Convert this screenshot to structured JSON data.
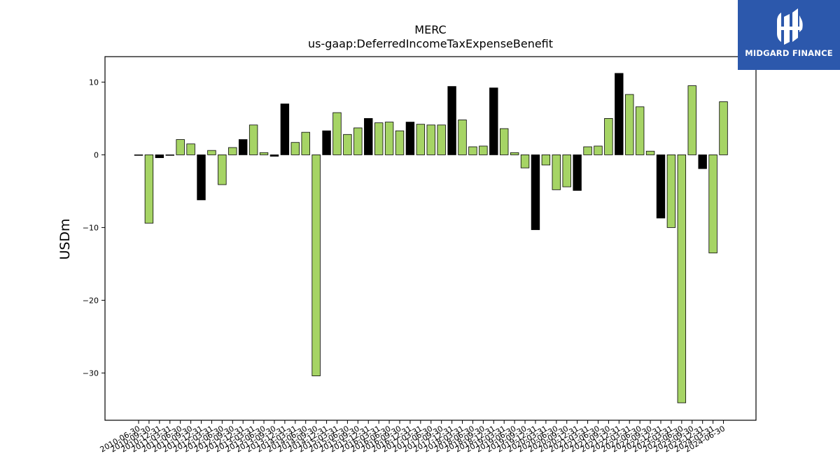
{
  "brand": {
    "name": "MIDGARD FINANCE",
    "logo_icon": "midgard-logo-icon",
    "background": "#2c58ac"
  },
  "chart_data": {
    "type": "bar",
    "title": "MERC",
    "subtitle": "us-gaap:DeferredIncomeTaxExpenseBenefit",
    "xlabel": "",
    "ylabel": "USDm",
    "ylim": [
      -36.5,
      13.5
    ],
    "yticks": [
      10,
      0,
      -10,
      -20,
      -30
    ],
    "ytick_labels": [
      "10",
      "0",
      "−10",
      "−20",
      "−30"
    ],
    "grid": false,
    "colors": {
      "positive_default": "#a6d465",
      "highlight": "#000000",
      "edge": "#000000"
    },
    "categories": [
      "2010-06-30",
      "2010-09-30",
      "2010-12-31",
      "2011-03-31",
      "2011-06-30",
      "2011-09-30",
      "2011-12-31",
      "2012-03-31",
      "2012-06-30",
      "2012-09-30",
      "2012-12-31",
      "2013-03-31",
      "2013-06-30",
      "2013-09-30",
      "2013-12-31",
      "2014-03-31",
      "2014-06-30",
      "2014-09-30",
      "2014-12-31",
      "2015-03-31",
      "2015-06-30",
      "2015-09-30",
      "2015-12-31",
      "2016-03-31",
      "2016-06-30",
      "2016-09-30",
      "2016-12-31",
      "2017-03-31",
      "2017-06-30",
      "2017-09-30",
      "2017-12-31",
      "2018-03-31",
      "2018-06-30",
      "2018-09-30",
      "2018-12-31",
      "2019-03-31",
      "2019-06-30",
      "2019-09-30",
      "2019-12-31",
      "2020-03-31",
      "2020-06-30",
      "2020-09-30",
      "2020-12-31",
      "2021-03-31",
      "2021-06-30",
      "2021-09-30",
      "2021-12-31",
      "2022-03-31",
      "2022-06-30",
      "2022-09-30",
      "2022-12-31",
      "2023-03-31",
      "2023-06-30",
      "2023-09-30",
      "2023-12-31",
      "2024-03-31",
      "2024-06-30"
    ],
    "xtick_labels": [
      "2010-06-30",
      "2010-09-30",
      "2010-12-31",
      "2011-03-31",
      "2011-06-30",
      "2011-09-30",
      "2011-12-31",
      "2012-03-31",
      "2012-06-30",
      "2012-09-30",
      "2012-12-31",
      "2013-03-31",
      "2013-06-30",
      "2013-09-30",
      "2013-12-31",
      "2014-03-31",
      "2014-06-30",
      "2014-09-30",
      "2014-12-31",
      "2015-03-31",
      "2015-06-30",
      "2015-09-30",
      "2015-12-31",
      "2016-03-31",
      "2016-06-30",
      "2016-09-30",
      "2016-12-31",
      "2017-03-31",
      "2017-06-30",
      "2017-09-30",
      "2017-12-31",
      "2018-03-31",
      "2018-06-30",
      "2018-09-30",
      "2018-12-31",
      "2019-03-31",
      "2019-06-30",
      "2019-09-30",
      "2019-12-31",
      "2020-03-31",
      "2020-06-30",
      "2020-09-30",
      "2020-12-31",
      "2021-03-31",
      "2021-06-30",
      "2021-09-30",
      "2021-12-31",
      "2022-03-31",
      "2022-06-30",
      "2022-09-30",
      "2022-12-31",
      "2023-03-31",
      "2023-06-30",
      "2023-09-30",
      "2023-12-31",
      "2024-03-31",
      "2024-06-30"
    ],
    "values": [
      0.0,
      -9.4,
      -0.4,
      0.0,
      2.1,
      1.5,
      -6.2,
      0.6,
      -4.1,
      1.0,
      2.1,
      4.1,
      0.3,
      -0.2,
      7.0,
      1.7,
      3.1,
      -30.4,
      3.3,
      5.8,
      2.8,
      3.7,
      5.0,
      4.4,
      4.5,
      3.3,
      4.5,
      4.2,
      4.1,
      4.1,
      9.4,
      4.8,
      1.1,
      1.2,
      9.2,
      3.6,
      0.3,
      -1.8,
      -10.3,
      -1.4,
      -4.8,
      -4.4,
      -4.9,
      1.1,
      1.2,
      5.0,
      11.2,
      8.3,
      6.6,
      0.5,
      -8.7,
      -10.0,
      -34.1,
      9.5,
      -1.9,
      -13.5,
      7.3
    ],
    "highlighted": [
      false,
      false,
      true,
      false,
      false,
      false,
      true,
      false,
      false,
      false,
      true,
      false,
      false,
      true,
      true,
      false,
      false,
      false,
      true,
      false,
      false,
      false,
      true,
      false,
      false,
      false,
      true,
      false,
      false,
      false,
      true,
      false,
      false,
      false,
      true,
      false,
      false,
      false,
      true,
      false,
      false,
      false,
      true,
      false,
      false,
      false,
      true,
      false,
      false,
      false,
      true,
      false,
      false,
      false,
      true,
      false,
      false
    ]
  }
}
